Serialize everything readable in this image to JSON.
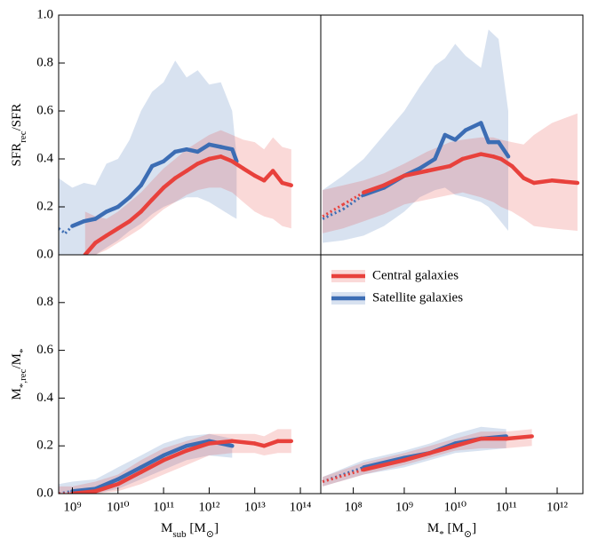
{
  "chart_data": [
    {
      "type": "line",
      "xscale": "log",
      "xlim": [
        500000000.0,
        280000000000000.0
      ],
      "ylim": [
        0,
        1
      ],
      "yticks": [
        {
          "value": 0,
          "label": "0.0"
        },
        0.2,
        0.4,
        0.6,
        0.8,
        {
          "value": 1,
          "label": "1.0"
        }
      ],
      "ylabel": "SFR_{rec}/SFR",
      "series": [
        {
          "color": "#e8413c",
          "x": [
            1900000000.0,
            3200000000.0,
            5600000000.0,
            10000000000.0,
            18000000000.0,
            32000000000.0,
            56000000000.0,
            100000000000.0,
            180000000000.0,
            320000000000.0,
            560000000000.0,
            1000000000000.0,
            1800000000000.0,
            3200000000000.0,
            5600000000000.0,
            10000000000000.0,
            16000000000000.0,
            25000000000000.0,
            40000000000000.0,
            63000000000000.0
          ],
          "values": [
            0,
            0.05,
            0.08,
            0.11,
            0.14,
            0.18,
            0.23,
            0.28,
            0.32,
            0.35,
            0.38,
            0.4,
            0.41,
            0.39,
            0.36,
            0.33,
            0.31,
            0.35,
            0.3,
            0.29
          ],
          "low": [
            0,
            0,
            0.02,
            0.05,
            0.08,
            0.11,
            0.15,
            0.19,
            0.22,
            0.25,
            0.27,
            0.28,
            0.28,
            0.26,
            0.22,
            0.18,
            0.16,
            0.15,
            0.12,
            0.11
          ],
          "high": [
            0.18,
            0.16,
            0.15,
            0.18,
            0.22,
            0.26,
            0.31,
            0.36,
            0.4,
            0.44,
            0.47,
            0.5,
            0.52,
            0.5,
            0.48,
            0.47,
            0.44,
            0.49,
            0.45,
            0.44
          ]
        },
        {
          "color": "#3c6db4",
          "x": [
            500000000.0,
            700000000.0,
            1000000000.0,
            1800000000.0,
            3200000000.0,
            5600000000.0,
            10000000000.0,
            18000000000.0,
            32000000000.0,
            56000000000.0,
            100000000000.0,
            180000000000.0,
            320000000000.0,
            560000000000.0,
            1000000000000.0,
            1800000000000.0,
            3200000000000.0,
            4000000000000.0
          ],
          "values": [
            0.11,
            0.09,
            0.12,
            0.14,
            0.15,
            0.18,
            0.2,
            0.24,
            0.29,
            0.37,
            0.39,
            0.43,
            0.44,
            0.43,
            0.46,
            0.45,
            0.44,
            0.39
          ],
          "low": [
            0,
            0,
            0,
            0,
            0,
            0.03,
            0.06,
            0.1,
            0.13,
            0.17,
            0.2,
            0.22,
            0.24,
            0.24,
            0.22,
            0.19,
            0.16,
            0.15
          ],
          "high": [
            0.32,
            0.3,
            0.28,
            0.3,
            0.29,
            0.38,
            0.4,
            0.48,
            0.6,
            0.68,
            0.72,
            0.81,
            0.74,
            0.77,
            0.71,
            0.72,
            0.6,
            0.41
          ],
          "dotted_below": 1000000000.0
        }
      ]
    },
    {
      "type": "line",
      "xscale": "log",
      "xlim": [
        23000000.0,
        3200000000000.0
      ],
      "ylim": [
        0,
        1
      ],
      "series": [
        {
          "color": "#e8413c",
          "x": [
            25000000.0,
            63000000.0,
            160000000.0,
            400000000.0,
            1000000000.0,
            2800000000.0,
            7900000000.0,
            14000000000.0,
            32000000000.0,
            56000000000.0,
            79000000000.0,
            130000000000.0,
            220000000000.0,
            350000000000.0,
            790000000000.0,
            2500000000000.0
          ],
          "values": [
            0.16,
            0.21,
            0.26,
            0.29,
            0.33,
            0.35,
            0.37,
            0.4,
            0.42,
            0.41,
            0.4,
            0.37,
            0.32,
            0.3,
            0.31,
            0.3
          ],
          "low": [
            0.09,
            0.11,
            0.14,
            0.17,
            0.21,
            0.23,
            0.25,
            0.26,
            0.24,
            0.22,
            0.2,
            0.18,
            0.15,
            0.12,
            0.11,
            0.1
          ],
          "high": [
            0.27,
            0.29,
            0.31,
            0.34,
            0.38,
            0.43,
            0.47,
            0.48,
            0.49,
            0.49,
            0.48,
            0.47,
            0.46,
            0.5,
            0.55,
            0.59
          ],
          "dotted_below": 200000000.0
        },
        {
          "color": "#3c6db4",
          "x": [
            25000000.0,
            63000000.0,
            160000000.0,
            400000000.0,
            1000000000.0,
            2000000000.0,
            4000000000.0,
            6300000000.0,
            10000000000.0,
            16000000000.0,
            32000000000.0,
            45000000000.0,
            71000000000.0,
            110000000000.0
          ],
          "values": [
            0.15,
            0.19,
            0.25,
            0.28,
            0.33,
            0.36,
            0.4,
            0.5,
            0.48,
            0.52,
            0.55,
            0.47,
            0.47,
            0.41
          ],
          "low": [
            0.05,
            0.06,
            0.08,
            0.12,
            0.18,
            0.24,
            0.27,
            0.28,
            0.25,
            0.24,
            0.22,
            0.2,
            0.15,
            0.1
          ],
          "high": [
            0.27,
            0.33,
            0.4,
            0.5,
            0.6,
            0.7,
            0.79,
            0.82,
            0.88,
            0.83,
            0.78,
            0.94,
            0.9,
            0.6
          ],
          "dotted_below": 200000000.0
        }
      ]
    },
    {
      "type": "line",
      "xscale": "log",
      "xlim": [
        500000000.0,
        280000000000000.0
      ],
      "ylim": [
        0,
        1
      ],
      "yticks": [
        {
          "value": 0,
          "label": "0.0"
        },
        0.2,
        0.4,
        0.6,
        0.8
      ],
      "xticks": [
        {
          "value": 1000000000.0,
          "label": "10⁹"
        },
        {
          "value": 10000000000.0,
          "label": "10¹⁰"
        },
        {
          "value": 100000000000.0,
          "label": "10¹¹"
        },
        {
          "value": 1000000000000.0,
          "label": "10¹²"
        },
        {
          "value": 10000000000000.0,
          "label": "10¹³"
        },
        {
          "value": 100000000000000.0,
          "label": "10¹⁴"
        }
      ],
      "xlabel": "M_{sub} [M_{⊙}]",
      "ylabel": "M_{*,rec}/M_{*}",
      "series": [
        {
          "color": "#e8413c",
          "x": [
            500000000.0,
            1000000000.0,
            3200000000.0,
            10000000000.0,
            32000000000.0,
            100000000000.0,
            320000000000.0,
            1000000000000.0,
            3200000000000.0,
            10000000000000.0,
            16000000000000.0,
            32000000000000.0,
            63000000000000.0
          ],
          "values": [
            0,
            0,
            0.01,
            0.04,
            0.09,
            0.14,
            0.18,
            0.21,
            0.22,
            0.21,
            0.2,
            0.22,
            0.22
          ],
          "low": [
            0,
            0,
            0,
            0.01,
            0.04,
            0.08,
            0.12,
            0.16,
            0.17,
            0.17,
            0.16,
            0.17,
            0.17
          ],
          "high": [
            0.03,
            0.03,
            0.05,
            0.08,
            0.14,
            0.19,
            0.22,
            0.25,
            0.25,
            0.25,
            0.24,
            0.27,
            0.27
          ],
          "dotted_below": 1000000000.0
        },
        {
          "color": "#3c6db4",
          "x": [
            500000000.0,
            1000000000.0,
            3200000000.0,
            10000000000.0,
            32000000000.0,
            100000000000.0,
            320000000000.0,
            1000000000000.0,
            3200000000000.0
          ],
          "values": [
            0,
            0.01,
            0.02,
            0.06,
            0.11,
            0.16,
            0.2,
            0.22,
            0.2
          ],
          "low": [
            0,
            0,
            0,
            0.02,
            0.06,
            0.1,
            0.14,
            0.16,
            0.15
          ],
          "high": [
            0.04,
            0.05,
            0.06,
            0.11,
            0.16,
            0.21,
            0.24,
            0.25,
            0.23
          ],
          "dotted_below": 1000000000.0
        }
      ]
    },
    {
      "type": "line",
      "xscale": "log",
      "xlim": [
        23000000.0,
        3200000000000.0
      ],
      "ylim": [
        0,
        1
      ],
      "xticks": [
        {
          "value": 100000000.0,
          "label": "10⁸"
        },
        {
          "value": 1000000000.0,
          "label": "10⁹"
        },
        {
          "value": 10000000000.0,
          "label": "10¹⁰"
        },
        {
          "value": 100000000000.0,
          "label": "10¹¹"
        },
        {
          "value": 1000000000000.0,
          "label": "10¹²"
        }
      ],
      "xlabel": "M_{*} [M_{⊙}]",
      "legend": "upper left",
      "series": [
        {
          "name": "Central galaxies",
          "color": "#e8413c",
          "x": [
            25000000.0,
            160000000.0,
            1000000000.0,
            3200000000.0,
            10000000000.0,
            32000000000.0,
            100000000000.0,
            320000000000.0
          ],
          "values": [
            0.05,
            0.1,
            0.14,
            0.17,
            0.2,
            0.23,
            0.23,
            0.24
          ],
          "low": [
            0.03,
            0.08,
            0.12,
            0.15,
            0.18,
            0.19,
            0.19,
            0.2
          ],
          "high": [
            0.07,
            0.13,
            0.17,
            0.2,
            0.23,
            0.26,
            0.26,
            0.27
          ],
          "dotted_below": 200000000.0
        },
        {
          "name": "Satellite galaxies",
          "color": "#3c6db4",
          "x": [
            25000000.0,
            160000000.0,
            1000000000.0,
            3200000000.0,
            10000000000.0,
            32000000000.0,
            100000000000.0
          ],
          "values": [
            0.05,
            0.11,
            0.15,
            0.17,
            0.21,
            0.23,
            0.24
          ],
          "low": [
            0.03,
            0.08,
            0.11,
            0.14,
            0.17,
            0.18,
            0.19
          ],
          "high": [
            0.07,
            0.14,
            0.18,
            0.21,
            0.25,
            0.28,
            0.27
          ],
          "dotted_below": 200000000.0
        }
      ]
    }
  ]
}
